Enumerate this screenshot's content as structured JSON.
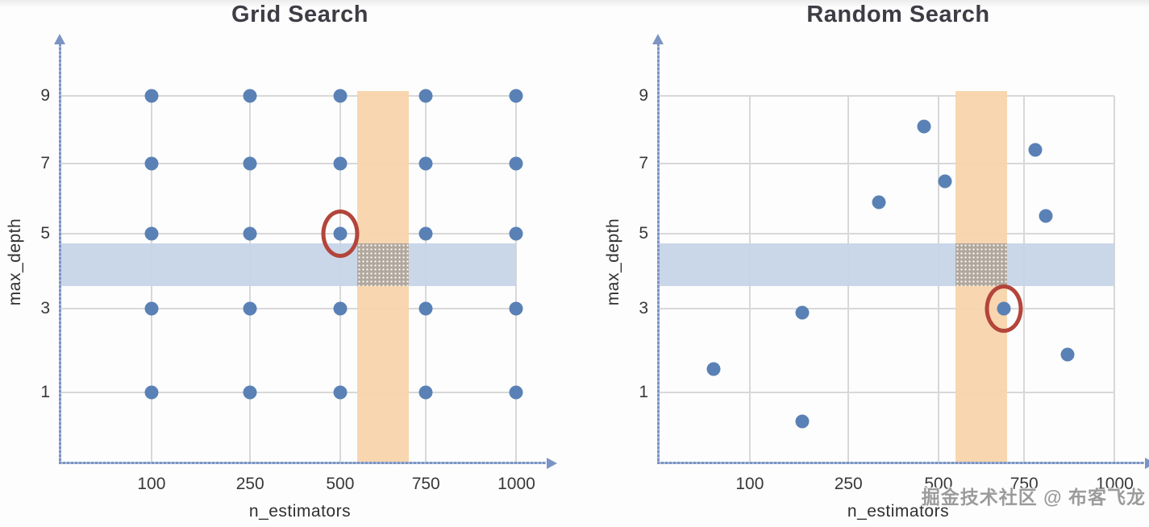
{
  "watermark": {
    "text": "掘金技术社区 @ 布客飞龙",
    "color": "#8e8e8e"
  },
  "colors": {
    "dot": "#5a81b5",
    "axis": "#7b94c3",
    "gridline": "#d8d8d8",
    "orange_band": "#f8d4ab",
    "blue_band": "#c7d5e8",
    "band_overlap": "#b1a79c",
    "highlight_circle": "#b4453b",
    "title_text": "#3d3d45",
    "tick_text": "#38383a"
  },
  "chart_data": [
    {
      "type": "scatter",
      "title": "Grid Search",
      "xlabel": "n_estimators",
      "ylabel": "max_depth",
      "x_ticks": [
        100,
        250,
        500,
        750,
        1000
      ],
      "y_ticks": [
        1,
        3,
        5,
        7,
        9
      ],
      "xlim": [
        0,
        1075
      ],
      "ylim": [
        0,
        10
      ],
      "grid": true,
      "legend": "none",
      "points": [
        [
          100,
          9
        ],
        [
          250,
          9
        ],
        [
          500,
          9
        ],
        [
          750,
          9
        ],
        [
          1000,
          9
        ],
        [
          100,
          7
        ],
        [
          250,
          7
        ],
        [
          500,
          7
        ],
        [
          750,
          7
        ],
        [
          1000,
          7
        ],
        [
          100,
          5
        ],
        [
          250,
          5
        ],
        [
          500,
          5
        ],
        [
          750,
          5
        ],
        [
          1000,
          5
        ],
        [
          100,
          3
        ],
        [
          250,
          3
        ],
        [
          500,
          3
        ],
        [
          750,
          3
        ],
        [
          1000,
          3
        ],
        [
          100,
          1
        ],
        [
          250,
          1
        ],
        [
          500,
          1
        ],
        [
          750,
          1
        ],
        [
          1000,
          1
        ]
      ],
      "highlighted_point": [
        500,
        5
      ],
      "orange_band_x": [
        550,
        700
      ],
      "blue_band_y": [
        3.6,
        4.75
      ]
    },
    {
      "type": "scatter",
      "title": "Random Search",
      "xlabel": "n_estimators",
      "ylabel": "max_depth",
      "x_ticks": [
        100,
        250,
        500,
        750,
        1000
      ],
      "y_ticks": [
        1,
        3,
        5,
        7,
        9
      ],
      "xlim": [
        0,
        1075
      ],
      "ylim": [
        0,
        10
      ],
      "grid": true,
      "legend": "none",
      "points": [
        [
          460,
          8.1
        ],
        [
          780,
          7.4
        ],
        [
          520,
          6.5
        ],
        [
          335,
          5.9
        ],
        [
          810,
          5.5
        ],
        [
          690,
          3.0
        ],
        [
          180,
          2.9
        ],
        [
          870,
          1.9
        ],
        [
          60,
          1.55
        ],
        [
          180,
          0.3
        ]
      ],
      "highlighted_point": [
        690,
        3.0
      ],
      "orange_band_x": [
        550,
        700
      ],
      "blue_band_y": [
        3.6,
        4.75
      ]
    }
  ]
}
